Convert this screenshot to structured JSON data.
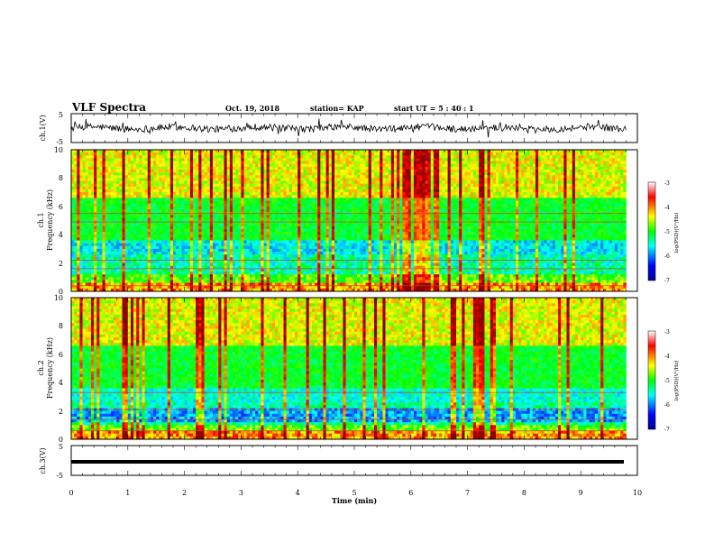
{
  "header": {
    "title": "VLF Spectra",
    "date": "Oct. 19, 2018",
    "station": "station= KAP",
    "start_ut": "start UT =  5 : 40 : 1"
  },
  "chart_data": [
    {
      "type": "line",
      "panel": "top",
      "ylabel": "ch.1(V)",
      "ylim": [
        -5,
        5
      ],
      "yticks": [
        "5",
        "-5"
      ],
      "xlim": [
        0,
        10
      ],
      "series": [
        {
          "approx_mean": 0,
          "approx_range": [
            -2,
            2
          ]
        }
      ]
    },
    {
      "type": "heatmap",
      "panel": "ch1",
      "ylabel": "ch.1\nFrequency (kHz)",
      "ylim": [
        0,
        10
      ],
      "yticks": [
        "0",
        "2",
        "4",
        "6",
        "8",
        "10"
      ],
      "xlim": [
        0,
        9.8
      ],
      "colorbar": {
        "label": "log(PSD)(V²/Hz)",
        "range": [
          -7,
          -3
        ],
        "ticks": [
          "-3",
          "-4",
          "-5",
          "-6",
          "-7"
        ]
      }
    },
    {
      "type": "heatmap",
      "panel": "ch2",
      "ylabel": "ch.2\nFrequency (kHz)",
      "ylim": [
        0,
        10
      ],
      "yticks": [
        "0",
        "2",
        "4",
        "6",
        "8",
        "10"
      ],
      "xlim": [
        0,
        9.8
      ],
      "colorbar": {
        "label": "log(PSD)(V²/Hz)",
        "range": [
          -7,
          -3
        ],
        "ticks": [
          "-3",
          "-4",
          "-5",
          "-6",
          "-7"
        ]
      }
    },
    {
      "type": "line",
      "panel": "bottom",
      "ylabel": "ch.3(V)",
      "ylim": [
        -5,
        5
      ],
      "yticks": [
        "5",
        "-5"
      ],
      "xlim": [
        0,
        10
      ],
      "series": [
        {
          "approx_value": -0.5
        }
      ]
    }
  ],
  "xaxis": {
    "label": "Time (min)",
    "ticks": [
      "0",
      "1",
      "2",
      "3",
      "4",
      "5",
      "6",
      "7",
      "8",
      "9",
      "10"
    ]
  },
  "colors": {
    "colormap": [
      "#00008f",
      "#0000ff",
      "#00ffff",
      "#00ff00",
      "#ffff00",
      "#ff0000",
      "#8f0000"
    ]
  }
}
